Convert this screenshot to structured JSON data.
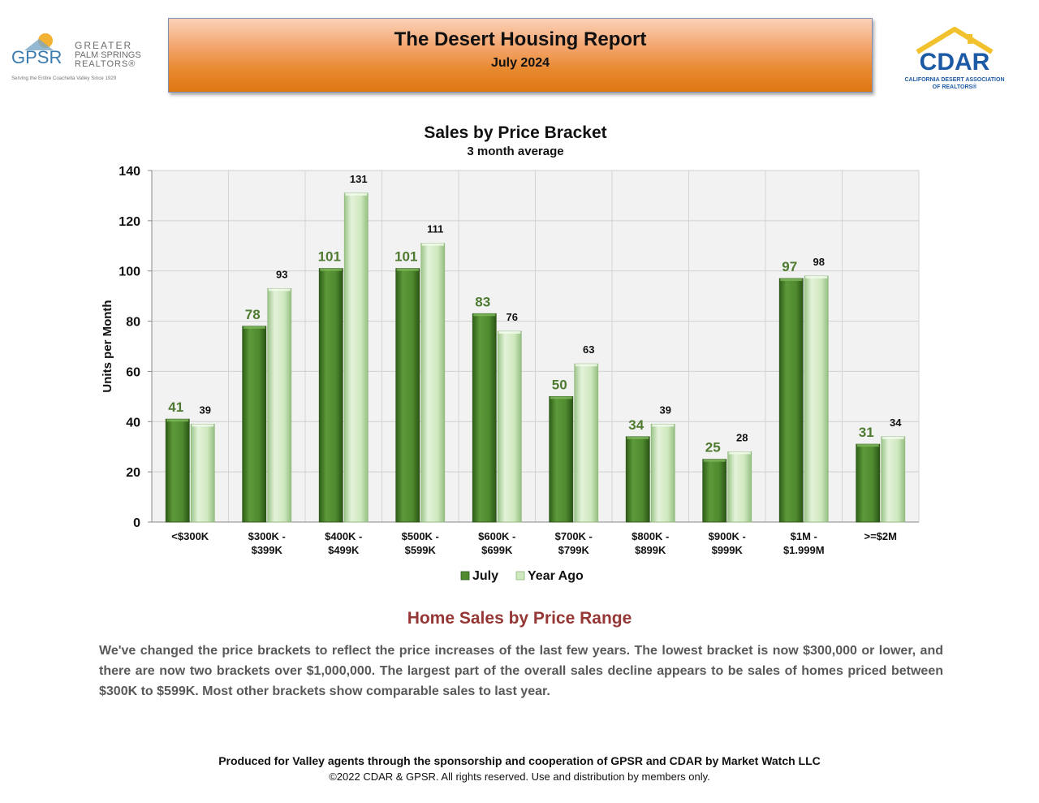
{
  "logos": {
    "left": {
      "initials": "GPSR",
      "line1": "GREATER",
      "line2": "PALM SPRINGS",
      "line3": "REALTORS®",
      "tagline": "Serving the Entire Coachella Valley Since 1929",
      "icon": "sun-mountain-logo"
    },
    "right": {
      "initials": "CDAR",
      "line1": "CALIFORNIA DESERT ASSOCIATION",
      "line2": "OF REALTORS®",
      "icon": "house-roof-logo"
    }
  },
  "header": {
    "title": "The Desert Housing Report",
    "subtitle": "July 2024"
  },
  "chart_data": {
    "type": "bar",
    "title": "Sales by Price Bracket",
    "subtitle": "3 month average",
    "xlabel": "",
    "ylabel": "Units per Month",
    "ylim": [
      0,
      140
    ],
    "yticks": [
      0,
      20,
      40,
      60,
      80,
      100,
      120,
      140
    ],
    "grid": true,
    "legend_position": "bottom",
    "categories": [
      [
        "<$300K"
      ],
      [
        "$300K -",
        "$399K"
      ],
      [
        "$400K -",
        "$499K"
      ],
      [
        "$500K -",
        "$599K"
      ],
      [
        "$600K -",
        "$699K"
      ],
      [
        "$700K -",
        "$799K"
      ],
      [
        "$800K -",
        "$899K"
      ],
      [
        "$900K -",
        "$999K"
      ],
      [
        "$1M -",
        "$1.999M"
      ],
      [
        ">=$2M"
      ]
    ],
    "series": [
      {
        "name": "July",
        "values": [
          41,
          78,
          101,
          101,
          83,
          50,
          34,
          25,
          97,
          31
        ],
        "color": "#4f8a2f"
      },
      {
        "name": "Year Ago",
        "values": [
          39,
          93,
          131,
          111,
          76,
          63,
          39,
          28,
          98,
          34
        ],
        "color": "#cfe8bf"
      }
    ]
  },
  "section": {
    "title": "Home Sales by Price Range",
    "body": "We've changed the price brackets to reflect the price increases of the last few years. The lowest bracket is now $300,000 or lower, and there are now two brackets over $1,000,000. The largest part of the overall sales decline appears to be sales of homes priced between $300K to $599K. Most other brackets show comparable sales to last year."
  },
  "footer": {
    "line1": "Produced for Valley agents through the sponsorship and cooperation of GPSR and CDAR by Market Watch LLC",
    "line2": "©2022 CDAR & GPSR.  All rights reserved.  Use and distribution by members only."
  }
}
